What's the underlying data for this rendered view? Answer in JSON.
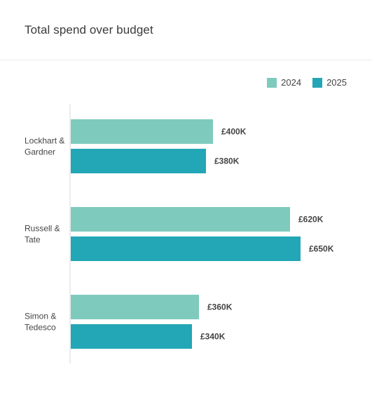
{
  "colors": {
    "series_2024": "#7ecbbd",
    "series_2025": "#23a6b6",
    "axis": "#d6d9db"
  },
  "chart_data": {
    "type": "bar",
    "orientation": "horizontal",
    "title": "Total spend over budget",
    "xlabel": "",
    "ylabel": "",
    "xlim": [
      0,
      700
    ],
    "grid": false,
    "legend_position": "top-right",
    "categories": [
      [
        "Lockhart &",
        "Gardner"
      ],
      [
        "Russell &",
        "Tate"
      ],
      [
        "Simon &",
        "Tedesco"
      ]
    ],
    "series": [
      {
        "name": "2024",
        "values": [
          400,
          620,
          360
        ],
        "labels": [
          "£400K",
          "£620K",
          "£360K"
        ]
      },
      {
        "name": "2025",
        "values": [
          380,
          650,
          340
        ],
        "labels": [
          "£380K",
          "£650K",
          "£340K"
        ]
      }
    ]
  }
}
